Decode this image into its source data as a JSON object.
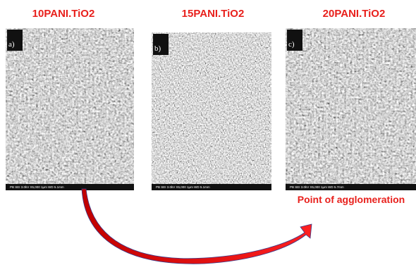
{
  "panels": [
    {
      "title": "10PANI.TiO2",
      "label": "a)",
      "footer": "PB    SEI   3.0kV   X5,000   1μm   WD 5.1mm"
    },
    {
      "title": "15PANI.TiO2",
      "label": "b)",
      "footer": "PB    SEI   3.0kV   X5,000   1μm   WD 5.1mm"
    },
    {
      "title": "20PANI.TiO2",
      "label": "c)",
      "footer": "PB    SEI   3.0kV   X5,000   1μm   WD 5.7mm"
    }
  ],
  "annotation": "Point of agglomeration"
}
